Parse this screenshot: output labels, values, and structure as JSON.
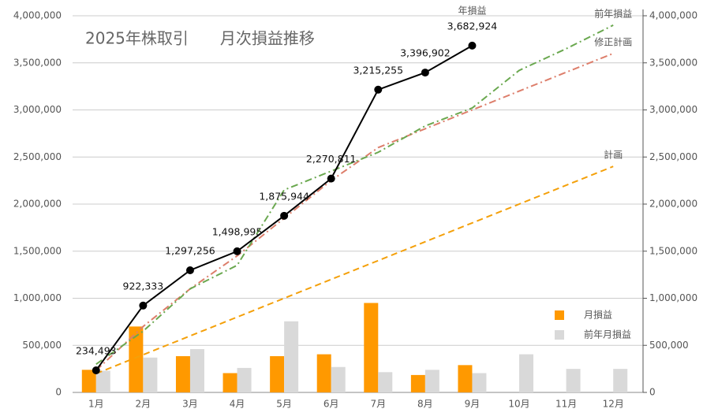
{
  "chart_data": {
    "type": "bar",
    "title": "2025年株取引　　月次損益推移",
    "categories": [
      "1月",
      "2月",
      "3月",
      "4月",
      "5月",
      "6月",
      "7月",
      "8月",
      "9月",
      "10月",
      "11月",
      "12月"
    ],
    "ylim": [
      0,
      4000000
    ],
    "yticks": [
      0,
      {
        "value": 500000,
        "label": "500,000"
      },
      {
        "value": 1000000,
        "label": "1,000,000"
      },
      {
        "value": 1500000,
        "label": "1,500,000"
      },
      {
        "value": 2000000,
        "label": "2,000,000"
      },
      {
        "value": 2500000,
        "label": "2,500,000"
      },
      {
        "value": 3000000,
        "label": "3,000,000"
      },
      {
        "value": 3500000,
        "label": "3,500,000"
      },
      {
        "value": 4000000,
        "label": "4,000,000"
      }
    ],
    "y2lim": [
      0,
      4000000
    ],
    "y2ticks": [
      0,
      {
        "value": 500000,
        "label": "500,000"
      },
      {
        "value": 1000000,
        "label": "1,000,000"
      },
      {
        "value": 1500000,
        "label": "1,500,000"
      },
      {
        "value": 2000000,
        "label": "2,000,000"
      },
      {
        "value": 2500000,
        "label": "2,500,000"
      },
      {
        "value": 3000000,
        "label": "3,000,000"
      },
      {
        "value": 3500000,
        "label": "3,500,000"
      },
      {
        "value": 4000000,
        "label": "4,000,000"
      }
    ],
    "grid": true,
    "legend": "lower right",
    "series": [
      {
        "name": "月損益",
        "type": "bar",
        "color": "#ff9900",
        "values": [
          240000,
          700000,
          385000,
          205000,
          385000,
          405000,
          950000,
          185000,
          290000,
          null,
          null,
          null
        ]
      },
      {
        "name": "前年月損益",
        "type": "bar",
        "color": "#d9d9d9",
        "values": [
          230000,
          370000,
          460000,
          260000,
          755000,
          270000,
          215000,
          240000,
          205000,
          405000,
          250000,
          250000
        ]
      },
      {
        "name": "計画",
        "type": "line",
        "axis": "y2",
        "color": "#f4a00a",
        "line_style": "dashed",
        "values": [
          200000,
          400000,
          600000,
          800000,
          1000000,
          1200000,
          1400000,
          1600000,
          1800000,
          2000000,
          2200000,
          2400000
        ]
      },
      {
        "name": "修正計画",
        "type": "line",
        "axis": "y2",
        "color": "#dd7e6b",
        "line_style": "dash-dot",
        "values": [
          234000,
          700000,
          1100000,
          1450000,
          1850000,
          2250000,
          2600000,
          2800000,
          3000000,
          3200000,
          3400000,
          3600000
        ]
      },
      {
        "name": "前年損益",
        "type": "line",
        "axis": "y2",
        "color": "#6aa84f",
        "line_style": "dash-dot",
        "values": [
          300000,
          650000,
          1100000,
          1350000,
          2150000,
          2350000,
          2550000,
          2830000,
          3020000,
          3420000,
          3650000,
          3900000
        ]
      },
      {
        "name": "年損益",
        "type": "line",
        "axis": "y2",
        "color": "#000000",
        "line_style": "solid",
        "markers": true,
        "values": [
          234493,
          922333,
          1297256,
          1498995,
          1875944,
          2270811,
          3215255,
          3396902,
          3682924,
          null,
          null,
          null
        ],
        "value_labels": [
          "234,493",
          "922,333",
          "1,297,256",
          "1,498,995",
          "1,875,944",
          "2,270,811",
          "3,215,255",
          "3,396,902",
          "3,682,924",
          null,
          null,
          null
        ]
      }
    ]
  }
}
